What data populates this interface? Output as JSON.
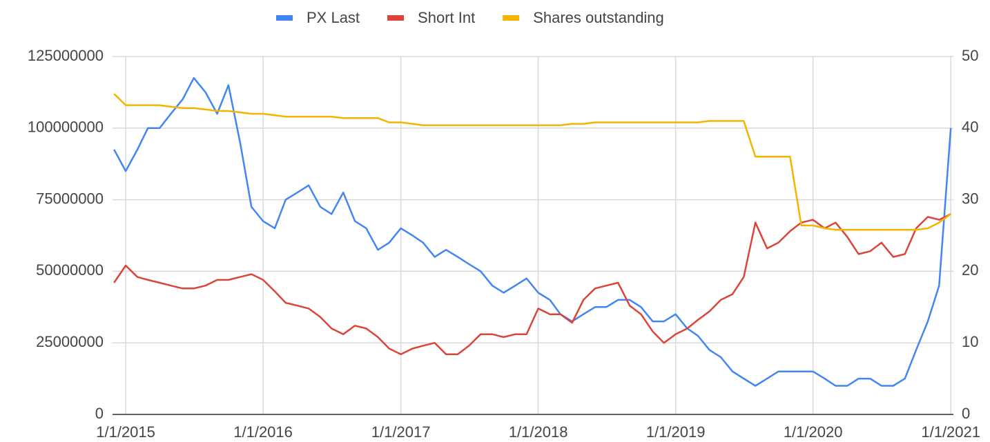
{
  "chart_data": {
    "type": "line",
    "x": [
      "2014-12-01",
      "2015-01-01",
      "2015-02-01",
      "2015-03-01",
      "2015-04-01",
      "2015-05-01",
      "2015-06-01",
      "2015-07-01",
      "2015-08-01",
      "2015-09-01",
      "2015-10-01",
      "2015-11-01",
      "2015-12-01",
      "2016-01-01",
      "2016-02-01",
      "2016-03-01",
      "2016-04-01",
      "2016-05-01",
      "2016-06-01",
      "2016-07-01",
      "2016-08-01",
      "2016-09-01",
      "2016-10-01",
      "2016-11-01",
      "2016-12-01",
      "2017-01-01",
      "2017-02-01",
      "2017-03-01",
      "2017-04-01",
      "2017-05-01",
      "2017-06-01",
      "2017-07-01",
      "2017-08-01",
      "2017-09-01",
      "2017-10-01",
      "2017-11-01",
      "2017-12-01",
      "2018-01-01",
      "2018-02-01",
      "2018-03-01",
      "2018-04-01",
      "2018-05-01",
      "2018-06-01",
      "2018-07-01",
      "2018-08-01",
      "2018-09-01",
      "2018-10-01",
      "2018-11-01",
      "2018-12-01",
      "2019-01-01",
      "2019-02-01",
      "2019-03-01",
      "2019-04-01",
      "2019-05-01",
      "2019-06-01",
      "2019-07-01",
      "2019-08-01",
      "2019-09-01",
      "2019-10-01",
      "2019-11-01",
      "2019-12-01",
      "2020-01-01",
      "2020-02-01",
      "2020-03-01",
      "2020-04-01",
      "2020-05-01",
      "2020-06-01",
      "2020-07-01",
      "2020-08-01",
      "2020-09-01",
      "2020-10-01",
      "2020-11-01",
      "2020-12-01",
      "2021-01-01"
    ],
    "series": [
      {
        "name": "PX Last",
        "color": "#4285f4",
        "axis": "y2",
        "values": [
          37,
          34,
          37,
          40,
          40,
          42,
          44,
          47,
          45,
          42,
          46,
          38,
          29,
          27,
          26,
          30,
          31,
          32,
          29,
          28,
          31,
          27,
          26,
          23,
          24,
          26,
          25,
          24,
          22,
          23,
          22,
          21,
          20,
          18,
          17,
          18,
          19,
          17,
          16,
          14,
          13,
          14,
          15,
          15,
          16,
          16,
          15,
          13,
          13,
          14,
          12,
          11,
          9,
          8,
          6,
          5,
          4,
          5,
          6,
          6,
          6,
          6,
          5,
          4,
          4,
          5,
          5,
          4,
          4,
          5,
          9,
          13,
          18,
          40
        ]
      },
      {
        "name": "Short Int",
        "color": "#db4437",
        "values": [
          46000000,
          52000000,
          48000000,
          47000000,
          46000000,
          45000000,
          44000000,
          44000000,
          45000000,
          47000000,
          47000000,
          48000000,
          49000000,
          47000000,
          43000000,
          39000000,
          38000000,
          37000000,
          34000000,
          30000000,
          28000000,
          31000000,
          30000000,
          27000000,
          23000000,
          21000000,
          23000000,
          24000000,
          25000000,
          21000000,
          21000000,
          24000000,
          28000000,
          28000000,
          27000000,
          28000000,
          28000000,
          37000000,
          35000000,
          35000000,
          32000000,
          40000000,
          44000000,
          45000000,
          46000000,
          38000000,
          35000000,
          29000000,
          25000000,
          28000000,
          30000000,
          33000000,
          36000000,
          40000000,
          42000000,
          48000000,
          67000000,
          58000000,
          60000000,
          64000000,
          67000000,
          68000000,
          65000000,
          67000000,
          62000000,
          56000000,
          57000000,
          60000000,
          55000000,
          56000000,
          65000000,
          69000000,
          68000000,
          70000000
        ]
      },
      {
        "name": "Shares outstanding",
        "color": "#f4b400",
        "values": [
          112000000,
          108000000,
          108000000,
          108000000,
          108000000,
          107500000,
          107000000,
          107000000,
          106500000,
          106000000,
          106000000,
          105500000,
          105000000,
          105000000,
          104500000,
          104000000,
          104000000,
          104000000,
          104000000,
          104000000,
          103500000,
          103500000,
          103500000,
          103500000,
          102000000,
          102000000,
          101500000,
          101000000,
          101000000,
          101000000,
          101000000,
          101000000,
          101000000,
          101000000,
          101000000,
          101000000,
          101000000,
          101000000,
          101000000,
          101000000,
          101500000,
          101500000,
          102000000,
          102000000,
          102000000,
          102000000,
          102000000,
          102000000,
          102000000,
          102000000,
          102000000,
          102000000,
          102500000,
          102500000,
          102500000,
          102500000,
          90000000,
          90000000,
          90000000,
          90000000,
          66000000,
          66000000,
          65000000,
          64500000,
          64500000,
          64500000,
          64500000,
          64500000,
          64500000,
          64500000,
          64500000,
          65000000,
          67000000,
          70000000
        ]
      }
    ],
    "xlim": [
      "2014-11-27",
      "2021-01-08"
    ],
    "xticks": [
      {
        "value": "2015-01-01",
        "label": "1/1/2015"
      },
      {
        "value": "2016-01-01",
        "label": "1/1/2016"
      },
      {
        "value": "2017-01-01",
        "label": "1/1/2017"
      },
      {
        "value": "2018-01-01",
        "label": "1/1/2018"
      },
      {
        "value": "2019-01-01",
        "label": "1/1/2019"
      },
      {
        "value": "2020-01-01",
        "label": "1/1/2020"
      },
      {
        "value": "2021-01-01",
        "label": "1/1/2021"
      }
    ],
    "ylim": [
      0,
      125000000
    ],
    "yticks": [
      0,
      25000000,
      50000000,
      75000000,
      100000000,
      125000000
    ],
    "y2lim": [
      0,
      50
    ],
    "y2ticks": [
      0,
      10,
      20,
      30,
      40,
      50
    ],
    "grid": true,
    "legend": "top"
  }
}
